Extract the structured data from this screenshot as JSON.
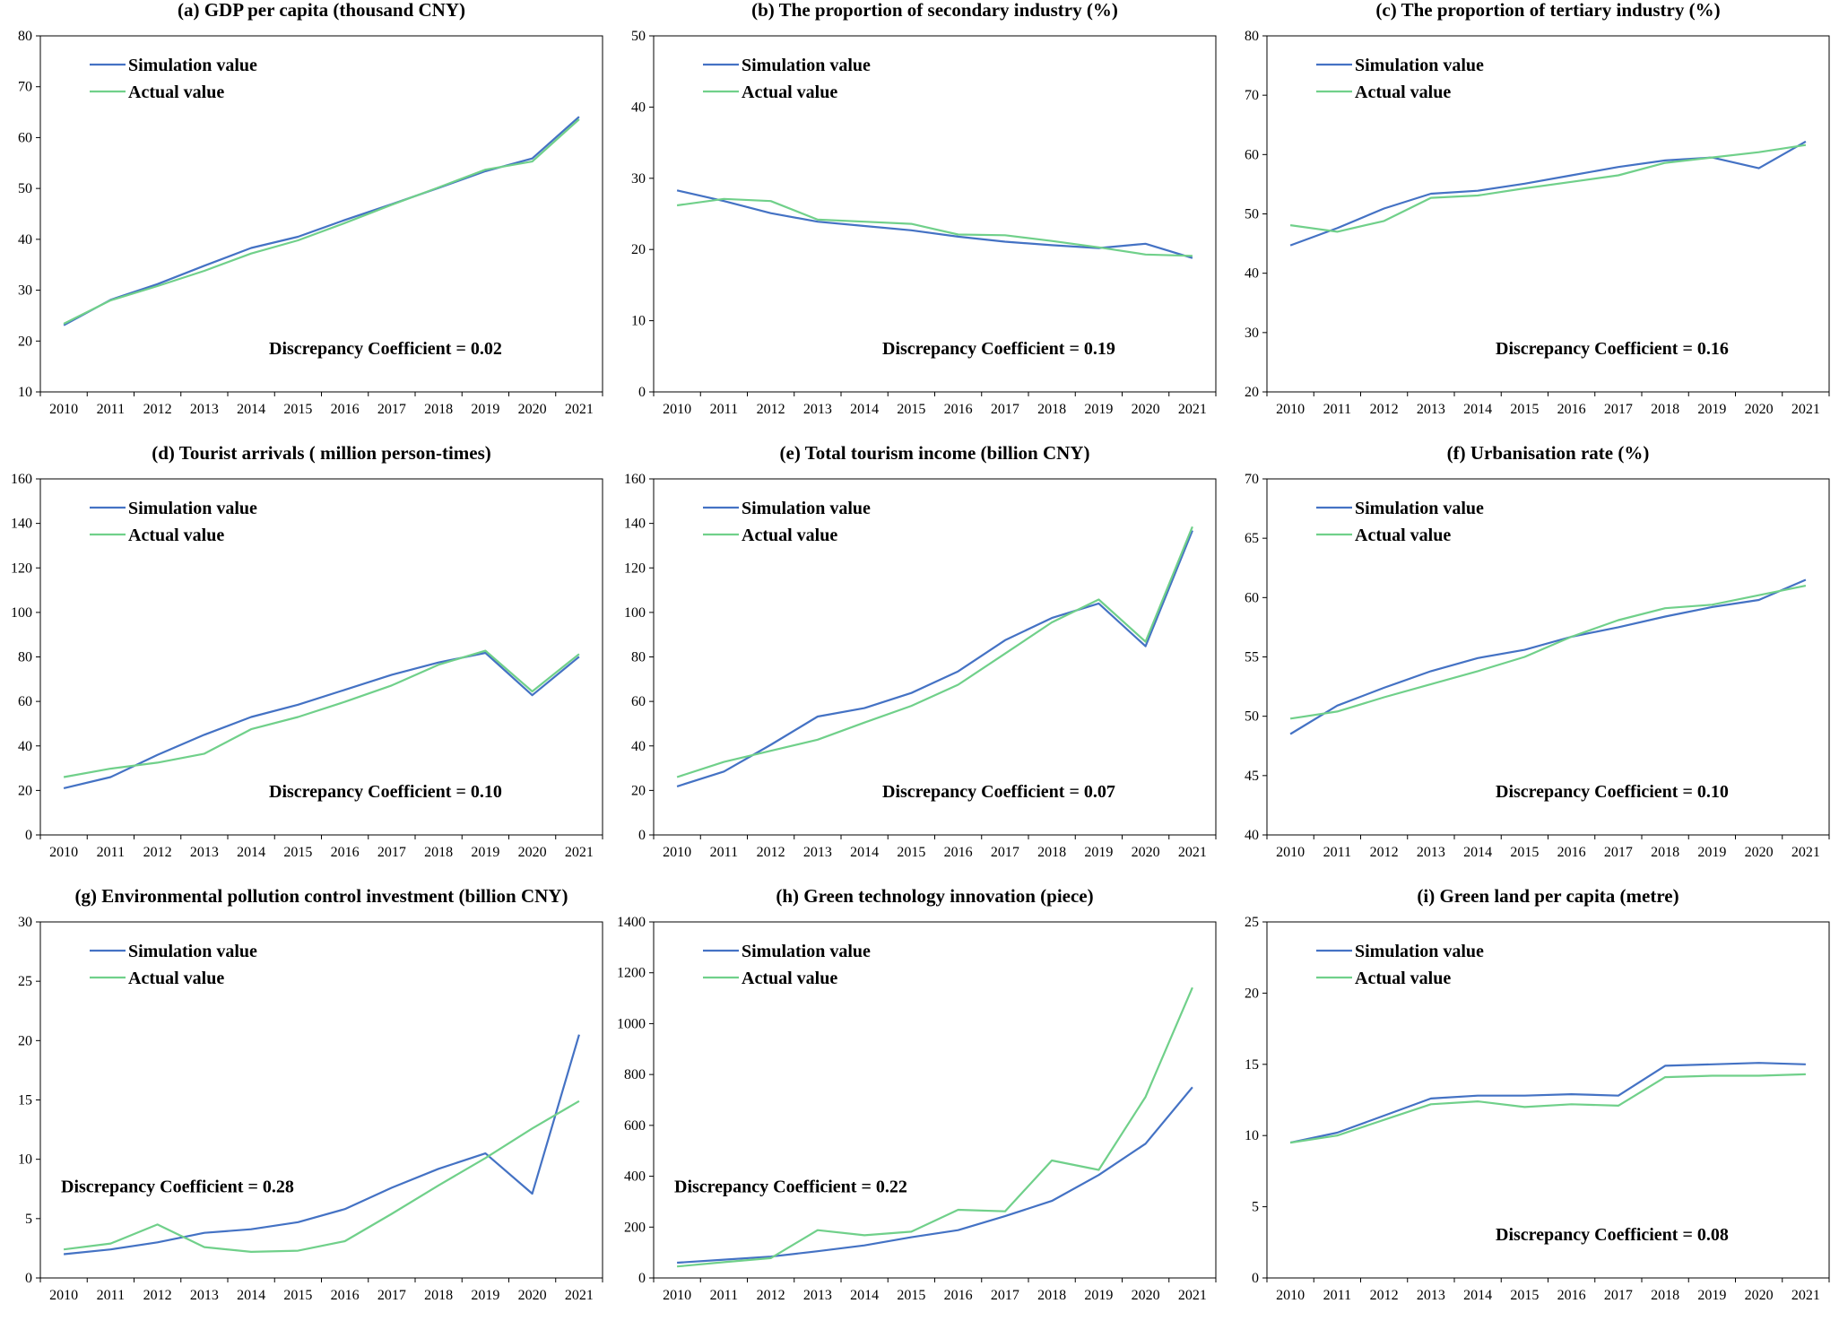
{
  "colors": {
    "simulation": "#4472C4",
    "actual": "#70D08A",
    "axis": "#000000"
  },
  "chart_data": [
    {
      "type": "line",
      "title": "(a) GDP per capita (thousand CNY)",
      "categories": [
        "2010",
        "2011",
        "2012",
        "2013",
        "2014",
        "2015",
        "2016",
        "2017",
        "2018",
        "2019",
        "2020",
        "2021"
      ],
      "ylim": [
        10,
        80
      ],
      "yticks": [
        10,
        20,
        30,
        40,
        50,
        60,
        70,
        80
      ],
      "legend": "top-left",
      "discrepancy": "Discrepancy Coefficient = 0.02",
      "discrepancy_pos": "bottom-right",
      "series": [
        {
          "name": "Simulation value",
          "values": [
            23.1,
            28.1,
            31.2,
            34.8,
            38.3,
            40.5,
            43.8,
            46.9,
            50.1,
            53.4,
            55.9,
            64.1
          ]
        },
        {
          "name": "Actual value",
          "values": [
            23.4,
            28.0,
            30.8,
            33.8,
            37.2,
            39.8,
            43.2,
            46.8,
            50.2,
            53.7,
            55.3,
            63.6
          ]
        }
      ]
    },
    {
      "type": "line",
      "title": "(b) The proportion of secondary industry (%)",
      "categories": [
        "2010",
        "2011",
        "2012",
        "2013",
        "2014",
        "2015",
        "2016",
        "2017",
        "2018",
        "2019",
        "2020",
        "2021"
      ],
      "ylim": [
        0,
        50
      ],
      "yticks": [
        0,
        10,
        20,
        30,
        40,
        50
      ],
      "legend": "top-left",
      "discrepancy": "Discrepancy Coefficient = 0.19",
      "discrepancy_pos": "bottom-right",
      "series": [
        {
          "name": "Simulation value",
          "values": [
            28.3,
            26.8,
            25.1,
            23.9,
            23.3,
            22.7,
            21.8,
            21.1,
            20.6,
            20.2,
            20.8,
            18.8
          ]
        },
        {
          "name": "Actual value",
          "values": [
            26.2,
            27.1,
            26.8,
            24.2,
            23.9,
            23.6,
            22.1,
            22.0,
            21.2,
            20.3,
            19.3,
            19.1
          ]
        }
      ]
    },
    {
      "type": "line",
      "title": "(c) The proportion of tertiary industry (%)",
      "categories": [
        "2010",
        "2011",
        "2012",
        "2013",
        "2014",
        "2015",
        "2016",
        "2017",
        "2018",
        "2019",
        "2020",
        "2021"
      ],
      "ylim": [
        20,
        80
      ],
      "yticks": [
        20,
        30,
        40,
        50,
        60,
        70,
        80
      ],
      "legend": "top-left",
      "discrepancy": "Discrepancy Coefficient = 0.16",
      "discrepancy_pos": "bottom-right",
      "series": [
        {
          "name": "Simulation value",
          "values": [
            44.7,
            47.6,
            50.9,
            53.4,
            53.9,
            55.1,
            56.5,
            57.9,
            59.0,
            59.5,
            57.7,
            62.2
          ]
        },
        {
          "name": "Actual value",
          "values": [
            48.1,
            47.0,
            48.8,
            52.7,
            53.1,
            54.3,
            55.4,
            56.5,
            58.6,
            59.5,
            60.4,
            61.6
          ]
        }
      ]
    },
    {
      "type": "line",
      "title": "(d) Tourist arrivals ( million  person-times)",
      "categories": [
        "2010",
        "2011",
        "2012",
        "2013",
        "2014",
        "2015",
        "2016",
        "2017",
        "2018",
        "2019",
        "2020",
        "2021"
      ],
      "ylim": [
        0,
        160
      ],
      "yticks": [
        0,
        20,
        40,
        60,
        80,
        100,
        120,
        140,
        160
      ],
      "legend": "top-left",
      "discrepancy": "Discrepancy Coefficient = 0.10",
      "discrepancy_pos": "bottom-right",
      "series": [
        {
          "name": "Simulation value",
          "values": [
            21.0,
            26.0,
            36.0,
            45.0,
            53.0,
            58.5,
            65.2,
            72.0,
            77.5,
            81.8,
            62.8,
            80.1
          ]
        },
        {
          "name": "Actual value",
          "values": [
            26.0,
            29.8,
            32.5,
            36.5,
            47.5,
            53.0,
            59.8,
            67.2,
            76.5,
            82.8,
            64.5,
            81.3
          ]
        }
      ]
    },
    {
      "type": "line",
      "title": "(e) Total tourism income (billion CNY)",
      "categories": [
        "2010",
        "2011",
        "2012",
        "2013",
        "2014",
        "2015",
        "2016",
        "2017",
        "2018",
        "2019",
        "2020",
        "2021"
      ],
      "ylim": [
        0,
        160
      ],
      "yticks": [
        0,
        20,
        40,
        60,
        80,
        100,
        120,
        140,
        160
      ],
      "legend": "top-left",
      "discrepancy": "Discrepancy Coefficient = 0.07",
      "discrepancy_pos": "bottom-right",
      "series": [
        {
          "name": "Simulation value",
          "values": [
            21.8,
            28.5,
            40.5,
            53.2,
            57.0,
            63.8,
            73.5,
            87.5,
            97.5,
            104.0,
            84.8,
            136.8
          ]
        },
        {
          "name": "Actual value",
          "values": [
            26.0,
            32.8,
            37.8,
            42.8,
            50.5,
            58.0,
            67.5,
            81.5,
            95.5,
            105.8,
            86.8,
            138.5
          ]
        }
      ]
    },
    {
      "type": "line",
      "title": "(f) Urbanisation rate (%)",
      "categories": [
        "2010",
        "2011",
        "2012",
        "2013",
        "2014",
        "2015",
        "2016",
        "2017",
        "2018",
        "2019",
        "2020",
        "2021"
      ],
      "ylim": [
        40,
        70
      ],
      "yticks": [
        40,
        45,
        50,
        55,
        60,
        65,
        70
      ],
      "legend": "top-left",
      "discrepancy": "Discrepancy Coefficient = 0.10",
      "discrepancy_pos": "bottom-right",
      "series": [
        {
          "name": "Simulation value",
          "values": [
            48.5,
            50.9,
            52.4,
            53.8,
            54.9,
            55.6,
            56.7,
            57.5,
            58.4,
            59.2,
            59.8,
            61.5
          ]
        },
        {
          "name": "Actual value",
          "values": [
            49.8,
            50.4,
            51.6,
            52.7,
            53.8,
            55.0,
            56.7,
            58.1,
            59.1,
            59.4,
            60.2,
            61.0
          ]
        }
      ]
    },
    {
      "type": "line",
      "title": "(g) Environmental pollution control investment (billion CNY)",
      "categories": [
        "2010",
        "2011",
        "2012",
        "2013",
        "2014",
        "2015",
        "2016",
        "2017",
        "2018",
        "2019",
        "2020",
        "2021"
      ],
      "ylim": [
        0,
        30
      ],
      "yticks": [
        0,
        5,
        10,
        15,
        20,
        25,
        30
      ],
      "legend": "top-left",
      "discrepancy": "Discrepancy Coefficient = 0.28",
      "discrepancy_pos": "mid-left",
      "series": [
        {
          "name": "Simulation value",
          "values": [
            2.0,
            2.4,
            3.0,
            3.8,
            4.1,
            4.7,
            5.8,
            7.6,
            9.2,
            10.5,
            7.1,
            20.5
          ]
        },
        {
          "name": "Actual value",
          "values": [
            2.4,
            2.9,
            4.5,
            2.6,
            2.2,
            2.3,
            3.1,
            5.4,
            7.8,
            10.1,
            12.6,
            14.9
          ]
        }
      ]
    },
    {
      "type": "line",
      "title": "(h) Green technology innovation (piece)",
      "categories": [
        "2010",
        "2011",
        "2012",
        "2013",
        "2014",
        "2015",
        "2016",
        "2017",
        "2018",
        "2019",
        "2020",
        "2021"
      ],
      "ylim": [
        0,
        1400
      ],
      "yticks": [
        0,
        200,
        400,
        600,
        800,
        1000,
        1200,
        1400
      ],
      "legend": "top-left",
      "discrepancy": "Discrepancy Coefficient = 0.22",
      "discrepancy_pos": "mid-left",
      "series": [
        {
          "name": "Simulation value",
          "values": [
            60,
            72,
            84,
            105,
            128,
            160,
            188,
            243,
            303,
            405,
            528,
            750
          ]
        },
        {
          "name": "Actual value",
          "values": [
            45,
            62,
            78,
            188,
            168,
            182,
            268,
            262,
            462,
            425,
            712,
            1142
          ]
        }
      ]
    },
    {
      "type": "line",
      "title": "(i) Green land per capita  (metre)",
      "categories": [
        "2010",
        "2011",
        "2012",
        "2013",
        "2014",
        "2015",
        "2016",
        "2017",
        "2018",
        "2019",
        "2020",
        "2021"
      ],
      "ylim": [
        0,
        25
      ],
      "yticks": [
        0,
        5,
        10,
        15,
        20,
        25
      ],
      "legend": "top-left",
      "discrepancy": "Discrepancy Coefficient = 0.08",
      "discrepancy_pos": "bottom-right",
      "series": [
        {
          "name": "Simulation value",
          "values": [
            9.5,
            10.2,
            11.4,
            12.6,
            12.8,
            12.8,
            12.9,
            12.8,
            14.9,
            15.0,
            15.1,
            15.0
          ]
        },
        {
          "name": "Actual value",
          "values": [
            9.5,
            10.0,
            11.1,
            12.2,
            12.4,
            12.0,
            12.2,
            12.1,
            14.1,
            14.2,
            14.2,
            14.3
          ]
        }
      ]
    }
  ]
}
